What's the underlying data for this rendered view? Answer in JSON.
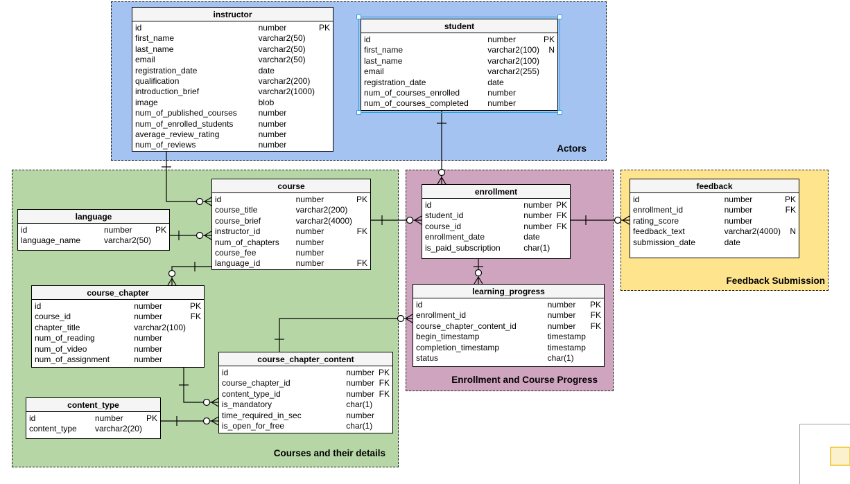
{
  "diagram": {
    "colors": {
      "actors_fill": "#a4c3f0",
      "courses_fill": "#b6d6a6",
      "enrollment_fill": "#cfa4bf",
      "feedback_fill": "#ffe48e",
      "table_header_fill": "#f5f5f5",
      "selection": "#2aa0e8",
      "outline_viewport_fill": "#fbf2cd"
    },
    "regions": [
      {
        "id": "actors",
        "label": "Actors"
      },
      {
        "id": "courses",
        "label": "Courses and their details"
      },
      {
        "id": "enrollment_progress",
        "label": "Enrollment and Course Progress"
      },
      {
        "id": "feedback_submission",
        "label": "Feedback Submission"
      }
    ],
    "tables": {
      "instructor": {
        "title": "instructor",
        "rows": [
          [
            "id",
            "number",
            "PK"
          ],
          [
            "first_name",
            "varchar2(50)",
            ""
          ],
          [
            "last_name",
            "varchar2(50)",
            ""
          ],
          [
            "email",
            "varchar2(50)",
            ""
          ],
          [
            "registration_date",
            "date",
            ""
          ],
          [
            "qualification",
            "varchar2(200)",
            ""
          ],
          [
            "introduction_brief",
            "varchar2(1000)",
            ""
          ],
          [
            "image",
            "blob",
            ""
          ],
          [
            "num_of_published_courses",
            "number",
            ""
          ],
          [
            "num_of_enrolled_students",
            "number",
            ""
          ],
          [
            "average_review_rating",
            "number",
            ""
          ],
          [
            "num_of_reviews",
            "number",
            ""
          ]
        ]
      },
      "student": {
        "title": "student",
        "rows": [
          [
            "id",
            "number",
            "PK"
          ],
          [
            "first_name",
            "varchar2(100)",
            "N"
          ],
          [
            "last_name",
            "varchar2(100)",
            ""
          ],
          [
            "email",
            "varchar2(255)",
            ""
          ],
          [
            "registration_date",
            "date",
            ""
          ],
          [
            "num_of_courses_enrolled",
            "number",
            ""
          ],
          [
            "num_of_courses_completed",
            "number",
            ""
          ]
        ]
      },
      "course": {
        "title": "course",
        "rows": [
          [
            "id",
            "number",
            "PK"
          ],
          [
            "course_title",
            "varchar2(200)",
            ""
          ],
          [
            "course_brief",
            "varchar2(4000)",
            ""
          ],
          [
            "instructor_id",
            "number",
            "FK"
          ],
          [
            "num_of_chapters",
            "number",
            ""
          ],
          [
            "course_fee",
            "number",
            ""
          ],
          [
            "language_id",
            "number",
            "FK"
          ]
        ]
      },
      "language": {
        "title": "language",
        "rows": [
          [
            "id",
            "number",
            "PK"
          ],
          [
            "language_name",
            "varchar2(50)",
            ""
          ]
        ]
      },
      "course_chapter": {
        "title": "course_chapter",
        "rows": [
          [
            "id",
            "number",
            "PK"
          ],
          [
            "course_id",
            "number",
            "FK"
          ],
          [
            "chapter_title",
            "varchar2(100)",
            ""
          ],
          [
            "num_of_reading",
            "number",
            ""
          ],
          [
            "num_of_video",
            "number",
            ""
          ],
          [
            "num_of_assignment",
            "number",
            ""
          ]
        ]
      },
      "content_type": {
        "title": "content_type",
        "rows": [
          [
            "id",
            "number",
            "PK"
          ],
          [
            "content_type",
            "varchar2(20)",
            ""
          ]
        ]
      },
      "course_chapter_content": {
        "title": "course_chapter_content",
        "rows": [
          [
            "id",
            "number",
            "PK"
          ],
          [
            "course_chapter_id",
            "number",
            "FK"
          ],
          [
            "content_type_id",
            "number",
            "FK"
          ],
          [
            "is_mandatory",
            "char(1)",
            ""
          ],
          [
            "time_required_in_sec",
            "number",
            ""
          ],
          [
            "is_open_for_free",
            "char(1)",
            ""
          ]
        ]
      },
      "enrollment": {
        "title": "enrollment",
        "rows": [
          [
            "id",
            "number",
            "PK"
          ],
          [
            "student_id",
            "number",
            "FK"
          ],
          [
            "course_id",
            "number",
            "FK"
          ],
          [
            "enrollment_date",
            "date",
            ""
          ],
          [
            "is_paid_subscription",
            "char(1)",
            ""
          ]
        ]
      },
      "learning_progress": {
        "title": "learning_progress",
        "rows": [
          [
            "id",
            "number",
            "PK"
          ],
          [
            "enrollment_id",
            "number",
            "FK"
          ],
          [
            "course_chapter_content_id",
            "number",
            "FK"
          ],
          [
            "begin_timestamp",
            "timestamp",
            ""
          ],
          [
            "completion_timestamp",
            "timestamp",
            ""
          ],
          [
            "status",
            "char(1)",
            ""
          ]
        ]
      },
      "feedback": {
        "title": "feedback",
        "rows": [
          [
            "id",
            "number",
            "PK"
          ],
          [
            "enrollment_id",
            "number",
            "FK"
          ],
          [
            "rating_score",
            "number",
            ""
          ],
          [
            "feedback_text",
            "varchar2(4000)",
            "N"
          ],
          [
            "submission_date",
            "date",
            ""
          ]
        ]
      }
    },
    "relationships": [
      {
        "from": "instructor",
        "to": "course",
        "from_cardinality": "one",
        "to_cardinality": "zero-or-many"
      },
      {
        "from": "student",
        "to": "enrollment",
        "from_cardinality": "one",
        "to_cardinality": "zero-or-many"
      },
      {
        "from": "course",
        "to": "enrollment",
        "from_cardinality": "one",
        "to_cardinality": "zero-or-many"
      },
      {
        "from": "language",
        "to": "course",
        "from_cardinality": "one",
        "to_cardinality": "zero-or-many"
      },
      {
        "from": "course",
        "to": "course_chapter",
        "from_cardinality": "one",
        "to_cardinality": "zero-or-many"
      },
      {
        "from": "course_chapter",
        "to": "course_chapter_content",
        "from_cardinality": "one",
        "to_cardinality": "zero-or-many"
      },
      {
        "from": "content_type",
        "to": "course_chapter_content",
        "from_cardinality": "one",
        "to_cardinality": "zero-or-many"
      },
      {
        "from": "enrollment",
        "to": "learning_progress",
        "from_cardinality": "one",
        "to_cardinality": "zero-or-many"
      },
      {
        "from": "enrollment",
        "to": "feedback",
        "from_cardinality": "one",
        "to_cardinality": "zero-or-many"
      },
      {
        "from": "course_chapter_content",
        "to": "learning_progress",
        "from_cardinality": "one",
        "to_cardinality": "zero-or-many"
      }
    ],
    "selection": {
      "selected_table": "student"
    }
  }
}
